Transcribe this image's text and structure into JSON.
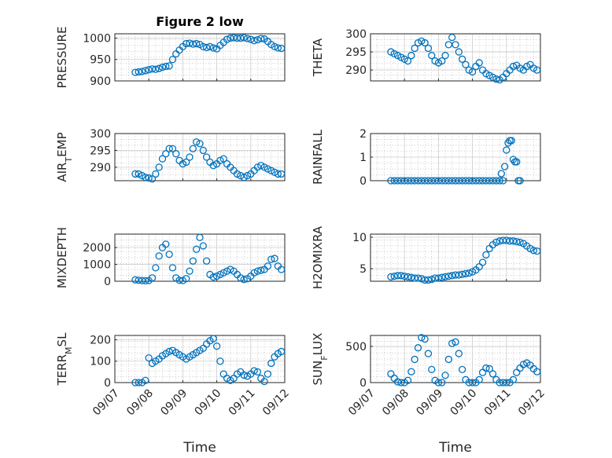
{
  "figure": {
    "title": "Figure 2 low"
  },
  "chart_data": [
    {
      "id": "pressure",
      "type": "scatter",
      "ylabel": "PRESSURE",
      "title": "Figure 2 low",
      "ylim": [
        900,
        1010
      ],
      "yticks": [
        900,
        950,
        1000
      ],
      "xticklabels": [],
      "xlabel": "",
      "x": [
        0.6,
        0.7,
        0.8,
        0.9,
        1.0,
        1.1,
        1.2,
        1.3,
        1.4,
        1.5,
        1.6,
        1.7,
        1.8,
        1.9,
        2.0,
        2.1,
        2.2,
        2.3,
        2.4,
        2.5,
        2.6,
        2.7,
        2.8,
        2.9,
        3.0,
        3.1,
        3.2,
        3.3,
        3.4,
        3.5,
        3.6,
        3.7,
        3.8,
        3.9,
        4.0,
        4.1,
        4.2,
        4.3,
        4.4,
        4.5,
        4.6,
        4.7,
        4.8,
        4.9
      ],
      "y": [
        920,
        921,
        922,
        924,
        926,
        928,
        927,
        929,
        932,
        934,
        935,
        950,
        963,
        972,
        980,
        987,
        988,
        986,
        987,
        985,
        980,
        978,
        980,
        977,
        975,
        983,
        990,
        997,
        1000,
        1001,
        1000,
        1000,
        1001,
        999,
        997,
        994,
        996,
        999,
        998,
        992,
        985,
        980,
        977,
        976
      ]
    },
    {
      "id": "theta",
      "type": "scatter",
      "ylabel": "THETA",
      "ylim": [
        287,
        300
      ],
      "yticks": [
        290,
        295,
        300
      ],
      "xticklabels": [],
      "xlabel": "",
      "x": [
        0.6,
        0.7,
        0.8,
        0.9,
        1.0,
        1.1,
        1.2,
        1.3,
        1.4,
        1.5,
        1.6,
        1.7,
        1.8,
        1.9,
        2.0,
        2.1,
        2.2,
        2.3,
        2.4,
        2.5,
        2.6,
        2.7,
        2.8,
        2.9,
        3.0,
        3.1,
        3.2,
        3.3,
        3.4,
        3.5,
        3.6,
        3.7,
        3.8,
        3.9,
        4.0,
        4.1,
        4.2,
        4.3,
        4.4,
        4.5,
        4.6,
        4.7,
        4.8,
        4.9
      ],
      "y": [
        295,
        294.5,
        294,
        293.5,
        293,
        292.5,
        294,
        296,
        297.5,
        298,
        297.5,
        296,
        294,
        292.5,
        292,
        292.5,
        294,
        297,
        299,
        297,
        295,
        293,
        291.5,
        290,
        289.5,
        291,
        292,
        290,
        289,
        288.5,
        288,
        287.5,
        287.3,
        288,
        289,
        290,
        291,
        291.3,
        290.5,
        290,
        291,
        291.5,
        290.5,
        290
      ]
    },
    {
      "id": "air_temp",
      "type": "scatter",
      "ylabel": "AIR_TEMP",
      "ylim": [
        286,
        300
      ],
      "yticks": [
        290,
        295,
        300
      ],
      "xticklabels": [],
      "xlabel": "",
      "x": [
        0.6,
        0.7,
        0.8,
        0.9,
        1.0,
        1.1,
        1.2,
        1.3,
        1.4,
        1.5,
        1.6,
        1.7,
        1.8,
        1.9,
        2.0,
        2.1,
        2.2,
        2.3,
        2.4,
        2.5,
        2.6,
        2.7,
        2.8,
        2.9,
        3.0,
        3.1,
        3.2,
        3.3,
        3.4,
        3.5,
        3.6,
        3.7,
        3.8,
        3.9,
        4.0,
        4.1,
        4.2,
        4.3,
        4.4,
        4.5,
        4.6,
        4.7,
        4.8,
        4.9
      ],
      "y": [
        288,
        288,
        287.5,
        287,
        286.8,
        286.5,
        288,
        290,
        292.5,
        294,
        295.5,
        295.5,
        294,
        292,
        291,
        291.5,
        293,
        295.5,
        297.5,
        297,
        295,
        293,
        291.5,
        290.5,
        291,
        292,
        292.5,
        291,
        290,
        289,
        288,
        287.5,
        287,
        287.5,
        288,
        289,
        290,
        290.5,
        290,
        289.5,
        289,
        288.5,
        288,
        288
      ]
    },
    {
      "id": "rainfall",
      "type": "scatter",
      "ylabel": "RAINFALL",
      "ylim": [
        0,
        2
      ],
      "yticks": [
        0,
        1,
        2
      ],
      "xticklabels": [],
      "xlabel": "",
      "x": [
        0.6,
        0.7,
        0.8,
        0.9,
        1.0,
        1.1,
        1.2,
        1.3,
        1.4,
        1.5,
        1.6,
        1.7,
        1.8,
        1.9,
        2.0,
        2.1,
        2.2,
        2.3,
        2.4,
        2.5,
        2.6,
        2.7,
        2.8,
        2.9,
        3.0,
        3.1,
        3.2,
        3.3,
        3.4,
        3.5,
        3.6,
        3.7,
        3.8,
        3.85,
        3.9,
        3.95,
        4.0,
        4.05,
        4.1,
        4.15,
        4.2,
        4.25,
        4.3,
        4.35,
        4.4
      ],
      "y": [
        0,
        0,
        0,
        0,
        0,
        0,
        0,
        0,
        0,
        0,
        0,
        0,
        0,
        0,
        0,
        0,
        0,
        0,
        0,
        0,
        0,
        0,
        0,
        0,
        0,
        0,
        0,
        0,
        0,
        0,
        0,
        0,
        0,
        0.3,
        0,
        0.6,
        1.3,
        1.6,
        1.7,
        1.7,
        0.9,
        0.8,
        0.8,
        0,
        0
      ]
    },
    {
      "id": "mixdepth",
      "type": "scatter",
      "ylabel": "MIXDEPTH",
      "ylim": [
        0,
        2800
      ],
      "yticks": [
        0,
        1000,
        2000
      ],
      "xticklabels": [],
      "xlabel": "",
      "x": [
        0.6,
        0.7,
        0.8,
        0.9,
        1.0,
        1.1,
        1.2,
        1.3,
        1.4,
        1.5,
        1.6,
        1.7,
        1.8,
        1.9,
        2.0,
        2.1,
        2.2,
        2.3,
        2.4,
        2.5,
        2.6,
        2.7,
        2.8,
        2.9,
        3.0,
        3.1,
        3.2,
        3.3,
        3.4,
        3.5,
        3.6,
        3.7,
        3.8,
        3.9,
        4.0,
        4.1,
        4.2,
        4.3,
        4.4,
        4.5,
        4.6,
        4.7,
        4.8,
        4.9
      ],
      "y": [
        80,
        60,
        40,
        30,
        40,
        200,
        800,
        1500,
        2000,
        2200,
        1600,
        800,
        200,
        60,
        40,
        150,
        600,
        1200,
        1900,
        2600,
        2100,
        1200,
        400,
        250,
        300,
        400,
        500,
        600,
        700,
        600,
        400,
        200,
        100,
        150,
        300,
        500,
        600,
        650,
        700,
        900,
        1300,
        1350,
        900,
        700
      ]
    },
    {
      "id": "h2omixra",
      "type": "scatter",
      "ylabel": "H2OMIXRA",
      "ylim": [
        3,
        10.5
      ],
      "yticks": [
        5,
        10
      ],
      "xticklabels": [],
      "xlabel": "",
      "x": [
        0.6,
        0.7,
        0.8,
        0.9,
        1.0,
        1.1,
        1.2,
        1.3,
        1.4,
        1.5,
        1.6,
        1.7,
        1.8,
        1.9,
        2.0,
        2.1,
        2.2,
        2.3,
        2.4,
        2.5,
        2.6,
        2.7,
        2.8,
        2.9,
        3.0,
        3.1,
        3.2,
        3.3,
        3.4,
        3.5,
        3.6,
        3.7,
        3.8,
        3.9,
        4.0,
        4.1,
        4.2,
        4.3,
        4.4,
        4.5,
        4.6,
        4.7,
        4.8,
        4.9
      ],
      "y": [
        3.7,
        3.8,
        3.9,
        3.9,
        3.8,
        3.7,
        3.6,
        3.5,
        3.5,
        3.4,
        3.2,
        3.2,
        3.3,
        3.5,
        3.5,
        3.6,
        3.7,
        3.8,
        3.9,
        4.0,
        4.0,
        4.1,
        4.2,
        4.3,
        4.5,
        4.8,
        5.3,
        6.0,
        7.2,
        8.2,
        8.8,
        9.2,
        9.4,
        9.5,
        9.5,
        9.4,
        9.4,
        9.3,
        9.2,
        9.0,
        8.6,
        8.2,
        7.9,
        7.8
      ]
    },
    {
      "id": "terr_msl",
      "type": "scatter",
      "ylabel": "TERR_MSL",
      "ylim": [
        0,
        220
      ],
      "yticks": [
        0,
        100,
        200
      ],
      "xticklabels": [
        "09/07",
        "09/08",
        "09/09",
        "09/10",
        "09/11",
        "09/12"
      ],
      "xlabel": "Time",
      "x": [
        0.6,
        0.7,
        0.8,
        0.9,
        1.0,
        1.1,
        1.2,
        1.3,
        1.4,
        1.5,
        1.6,
        1.7,
        1.8,
        1.9,
        2.0,
        2.1,
        2.2,
        2.3,
        2.4,
        2.5,
        2.6,
        2.7,
        2.8,
        2.9,
        3.0,
        3.1,
        3.2,
        3.3,
        3.4,
        3.5,
        3.6,
        3.7,
        3.8,
        3.9,
        4.0,
        4.1,
        4.2,
        4.3,
        4.4,
        4.5,
        4.6,
        4.7,
        4.8,
        4.9
      ],
      "y": [
        0,
        0,
        0,
        10,
        115,
        90,
        100,
        110,
        125,
        135,
        145,
        150,
        140,
        130,
        120,
        110,
        120,
        130,
        140,
        150,
        160,
        180,
        195,
        205,
        170,
        100,
        40,
        20,
        10,
        20,
        40,
        50,
        35,
        30,
        40,
        55,
        50,
        20,
        5,
        40,
        90,
        120,
        135,
        145
      ]
    },
    {
      "id": "sun_flux",
      "type": "scatter",
      "ylabel": "SUN_FLUX",
      "ylim": [
        0,
        650
      ],
      "yticks": [
        0,
        500
      ],
      "xticklabels": [
        "09/07",
        "09/08",
        "09/09",
        "09/10",
        "09/11",
        "09/12"
      ],
      "xlabel": "Time",
      "x": [
        0.6,
        0.7,
        0.8,
        0.9,
        1.0,
        1.1,
        1.2,
        1.3,
        1.4,
        1.5,
        1.6,
        1.7,
        1.8,
        1.9,
        2.0,
        2.1,
        2.2,
        2.3,
        2.4,
        2.5,
        2.6,
        2.7,
        2.8,
        2.9,
        3.0,
        3.1,
        3.2,
        3.3,
        3.4,
        3.5,
        3.6,
        3.7,
        3.8,
        3.9,
        4.0,
        4.1,
        4.2,
        4.3,
        4.4,
        4.5,
        4.6,
        4.7,
        4.8,
        4.9
      ],
      "y": [
        120,
        60,
        10,
        0,
        0,
        30,
        150,
        320,
        480,
        620,
        600,
        400,
        180,
        30,
        0,
        0,
        100,
        320,
        540,
        560,
        400,
        180,
        40,
        0,
        0,
        0,
        40,
        140,
        200,
        190,
        120,
        40,
        0,
        0,
        0,
        0,
        40,
        140,
        200,
        250,
        270,
        240,
        190,
        150
      ]
    }
  ]
}
